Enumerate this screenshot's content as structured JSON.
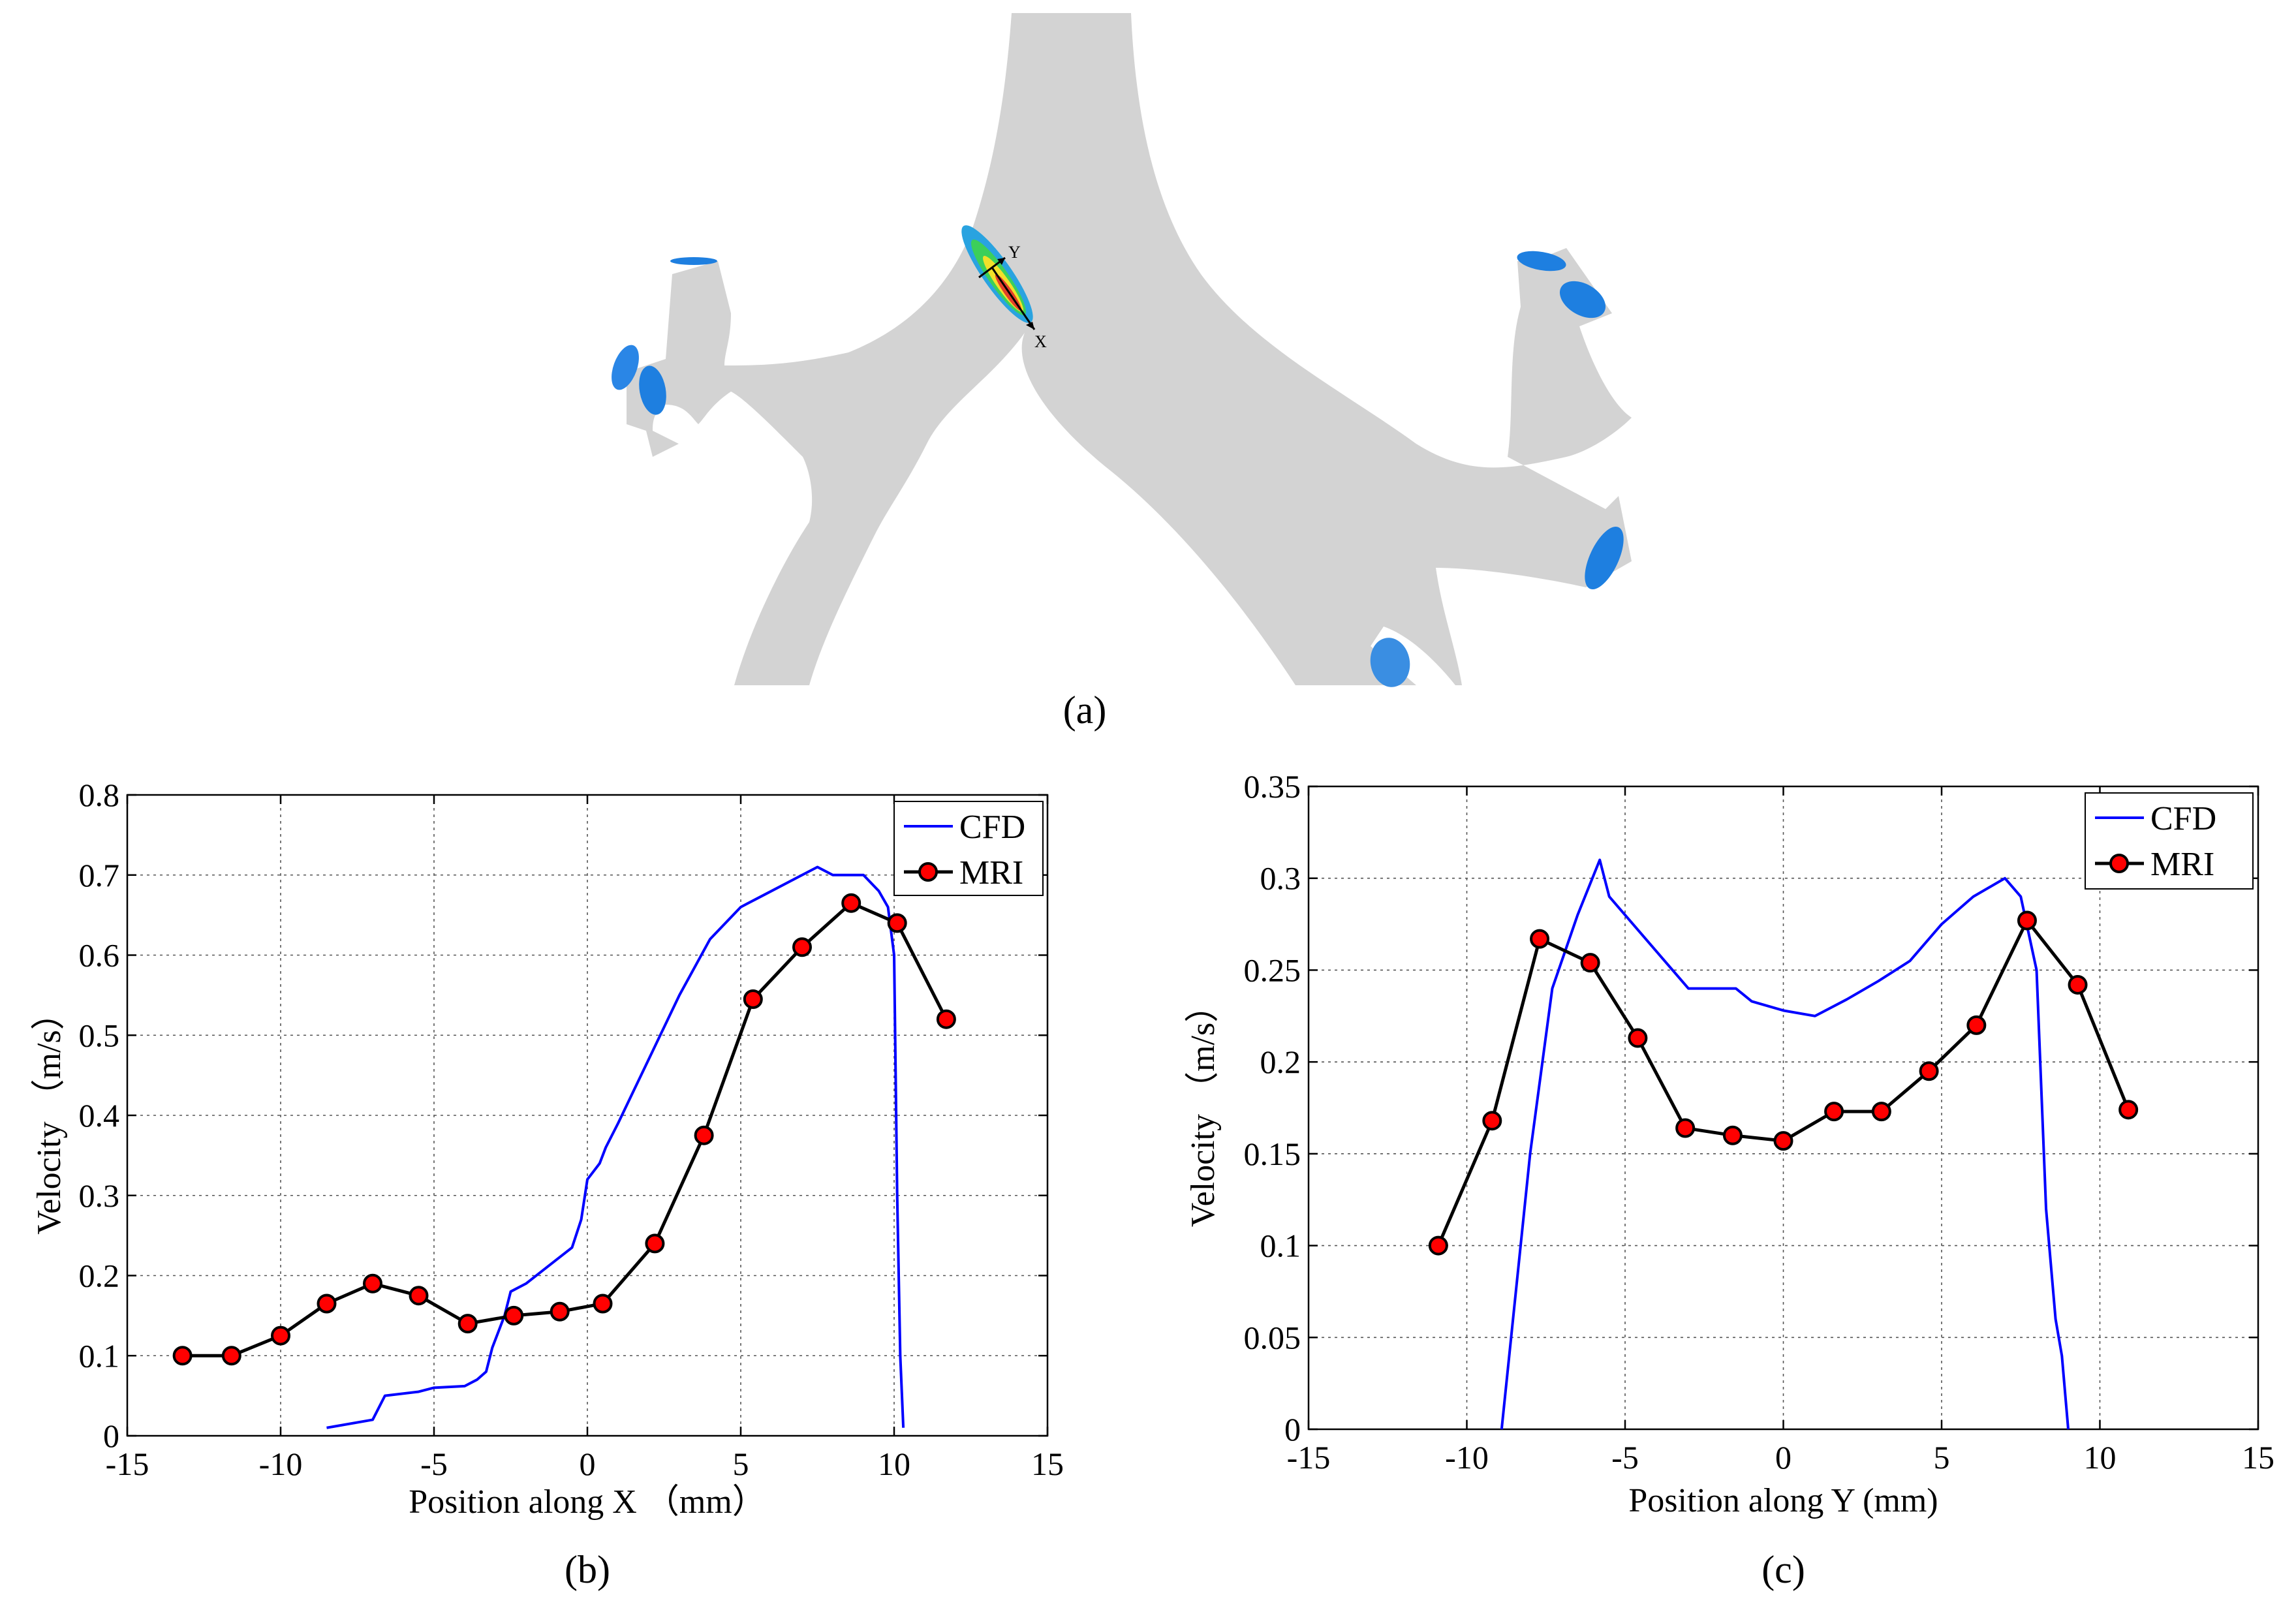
{
  "panel_a": {
    "label": "(a)",
    "axis_x_letter": "X",
    "axis_y_letter": "Y",
    "colors": {
      "vessel": "#d3d3d3",
      "outlet": "#1e7fe0",
      "outlet_dark": "#0b5fc4"
    }
  },
  "chart_data": [
    {
      "type": "line",
      "panel_label": "(b)",
      "xlabel": "Position along  X （mm）",
      "ylabel": "Velocity （m/s）",
      "xlim": [
        -15,
        15
      ],
      "ylim": [
        0,
        0.8
      ],
      "xticks": [
        -15,
        -10,
        -5,
        0,
        5,
        10,
        15
      ],
      "yticks": [
        0,
        0.1,
        0.2,
        0.3,
        0.4,
        0.5,
        0.6,
        0.7,
        0.8
      ],
      "grid": true,
      "legend_position": "top-right",
      "series": [
        {
          "name": "CFD",
          "color": "#0000ff",
          "marker": "none",
          "x": [
            -8.5,
            -7.0,
            -6.6,
            -5.5,
            -5.0,
            -4.0,
            -3.6,
            -3.3,
            -3.1,
            -2.9,
            -2.7,
            -2.5,
            -2.0,
            -1.0,
            -0.5,
            -0.2,
            0.0,
            0.2,
            0.4,
            0.6,
            1.0,
            1.5,
            2.0,
            2.5,
            3.0,
            4.0,
            5.0,
            5.5,
            6.0,
            7.0,
            7.5,
            8.0,
            8.5,
            9.0,
            9.5,
            9.8,
            10.0,
            10.1,
            10.2,
            10.3
          ],
          "y": [
            0.01,
            0.02,
            0.05,
            0.055,
            0.06,
            0.062,
            0.07,
            0.08,
            0.11,
            0.13,
            0.15,
            0.18,
            0.19,
            0.22,
            0.235,
            0.27,
            0.32,
            0.33,
            0.34,
            0.36,
            0.39,
            0.43,
            0.47,
            0.51,
            0.55,
            0.62,
            0.66,
            0.67,
            0.68,
            0.7,
            0.71,
            0.7,
            0.7,
            0.7,
            0.68,
            0.66,
            0.6,
            0.3,
            0.1,
            0.01
          ]
        },
        {
          "name": "MRI",
          "color": "#000000",
          "marker": "circle",
          "marker_color": "#ff0000",
          "x": [
            -13.2,
            -11.6,
            -10.0,
            -8.5,
            -7.0,
            -5.5,
            -3.9,
            -2.4,
            -0.9,
            0.5,
            2.2,
            3.8,
            5.4,
            7.0,
            8.6,
            10.1,
            11.7
          ],
          "y": [
            0.1,
            0.1,
            0.125,
            0.165,
            0.19,
            0.175,
            0.14,
            0.15,
            0.155,
            0.165,
            0.24,
            0.375,
            0.545,
            0.61,
            0.665,
            0.64,
            0.52
          ]
        }
      ]
    },
    {
      "type": "line",
      "panel_label": "(c)",
      "xlabel": "Position along Y (mm)",
      "ylabel": "Velocity （m/s）",
      "xlim": [
        -15,
        15
      ],
      "ylim": [
        0,
        0.35
      ],
      "xticks": [
        -15,
        -10,
        -5,
        0,
        5,
        10,
        15
      ],
      "yticks": [
        0,
        0.05,
        0.1,
        0.15,
        0.2,
        0.25,
        0.3,
        0.35
      ],
      "grid": true,
      "legend_position": "top-right",
      "series": [
        {
          "name": "CFD",
          "color": "#0000ff",
          "marker": "none",
          "x": [
            -8.9,
            -8.0,
            -7.3,
            -6.5,
            -5.8,
            -5.5,
            -4.0,
            -3.0,
            -2.0,
            -1.5,
            -1.0,
            0.0,
            1.0,
            2.0,
            3.0,
            4.0,
            5.0,
            6.0,
            7.0,
            7.5,
            8.0,
            8.3,
            8.6,
            8.8,
            9.0
          ],
          "y": [
            0.0,
            0.15,
            0.24,
            0.28,
            0.31,
            0.29,
            0.26,
            0.24,
            0.24,
            0.24,
            0.233,
            0.228,
            0.225,
            0.234,
            0.244,
            0.255,
            0.275,
            0.29,
            0.3,
            0.29,
            0.25,
            0.12,
            0.06,
            0.04,
            0.0
          ]
        },
        {
          "name": "MRI",
          "color": "#000000",
          "marker": "circle",
          "marker_color": "#ff0000",
          "x": [
            -10.9,
            -9.2,
            -7.7,
            -6.1,
            -4.6,
            -3.1,
            -1.6,
            0.0,
            1.6,
            3.1,
            4.6,
            6.1,
            7.7,
            9.3,
            10.9
          ],
          "y": [
            0.1,
            0.168,
            0.267,
            0.254,
            0.213,
            0.164,
            0.16,
            0.157,
            0.173,
            0.173,
            0.195,
            0.22,
            0.277,
            0.242,
            0.174
          ]
        }
      ]
    }
  ]
}
